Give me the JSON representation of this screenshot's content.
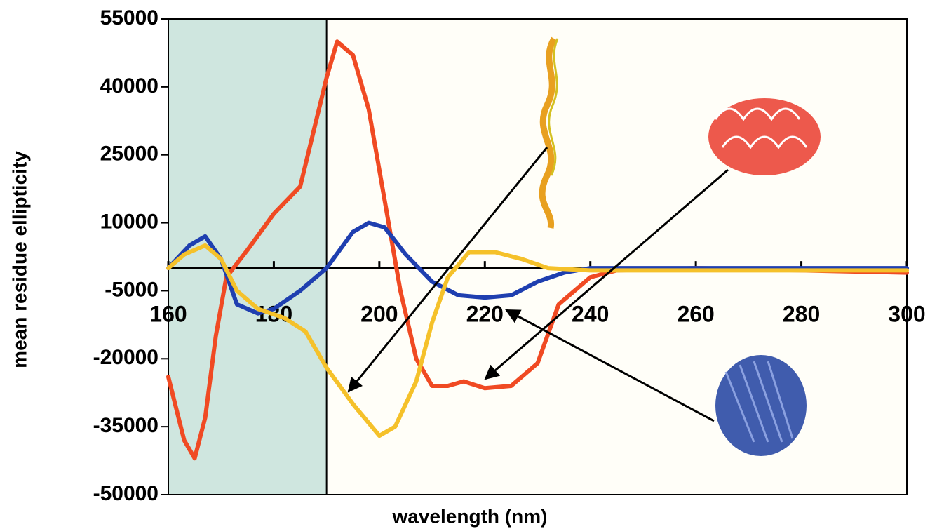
{
  "chart_data": {
    "type": "line",
    "x_label": "wavelength (nm)",
    "y_label": "mean residue ellipticity",
    "xlim": [
      160,
      300
    ],
    "xticks": [
      160,
      180,
      200,
      220,
      240,
      260,
      280,
      300
    ],
    "ylim": [
      -50000,
      55000
    ],
    "yticks": [
      55000,
      40000,
      25000,
      10000,
      -5000,
      -20000,
      -35000,
      -50000
    ],
    "shaded_x": [
      160,
      190
    ],
    "series": [
      {
        "color": "#f04a23",
        "x": [
          160,
          163,
          165,
          167,
          169,
          171,
          175,
          180,
          185,
          190,
          192,
          195,
          198,
          201,
          204,
          207,
          210,
          213,
          216,
          220,
          225,
          230,
          234,
          240,
          245,
          260,
          280,
          300
        ],
        "values": [
          -24000,
          -38000,
          -42000,
          -33000,
          -15000,
          -2000,
          4000,
          12000,
          18000,
          42000,
          50000,
          47000,
          35000,
          15000,
          -5000,
          -20000,
          -26000,
          -26000,
          -25000,
          -26500,
          -26000,
          -21000,
          -8000,
          -2000,
          -500,
          0,
          -500,
          -1000
        ]
      },
      {
        "color": "#1f3fb0",
        "x": [
          160,
          164,
          167,
          170,
          173,
          177,
          180,
          185,
          190,
          195,
          198,
          201,
          205,
          210,
          215,
          220,
          225,
          230,
          235,
          240,
          300
        ],
        "values": [
          0,
          5000,
          7000,
          2000,
          -8000,
          -10000,
          -9000,
          -5000,
          0,
          8000,
          10000,
          9000,
          3000,
          -3000,
          -6000,
          -6500,
          -6000,
          -3000,
          -1000,
          0,
          0
        ]
      },
      {
        "color": "#f5c12a",
        "x": [
          160,
          163,
          167,
          170,
          173,
          177,
          182,
          186,
          190,
          195,
          200,
          203,
          207,
          210,
          213,
          217,
          222,
          227,
          232,
          240,
          300
        ],
        "values": [
          0,
          3000,
          5000,
          2000,
          -5000,
          -9000,
          -11000,
          -14000,
          -22000,
          -30000,
          -37000,
          -35000,
          -25000,
          -12000,
          -2000,
          3500,
          3500,
          2000,
          0,
          -500,
          -500
        ]
      }
    ]
  }
}
